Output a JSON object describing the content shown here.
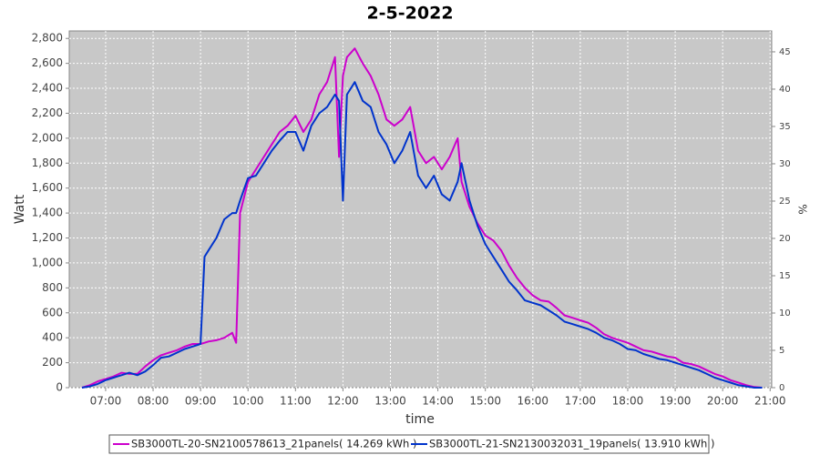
{
  "chart_data": {
    "type": "line",
    "title": "2-5-2022",
    "x_label": "time",
    "y_label": "Watt",
    "y2_label": "%",
    "grid": true,
    "legend": "bottom",
    "xlim": [
      "06:14",
      "21:02"
    ],
    "xticks": [
      "07:00",
      "08:00",
      "09:00",
      "10:00",
      "11:00",
      "12:00",
      "13:00",
      "14:00",
      "15:00",
      "16:00",
      "17:00",
      "18:00",
      "19:00",
      "20:00",
      "21:00"
    ],
    "ylim": [
      0,
      2860
    ],
    "yticks": [
      0,
      200,
      400,
      600,
      800,
      {
        "value": 1000,
        "label": "1,000"
      },
      {
        "value": 1200,
        "label": "1,200"
      },
      {
        "value": 1400,
        "label": "1,400"
      },
      {
        "value": 1600,
        "label": "1,600"
      },
      {
        "value": 1800,
        "label": "1,800"
      },
      {
        "value": 2000,
        "label": "2,000"
      },
      {
        "value": 2200,
        "label": "2,200"
      },
      {
        "value": 2400,
        "label": "2,400"
      },
      {
        "value": 2600,
        "label": "2,600"
      },
      {
        "value": 2800,
        "label": "2,800"
      }
    ],
    "y2lim": [
      0,
      47.8
    ],
    "y2ticks": [
      0,
      5,
      10,
      15,
      20,
      25,
      30,
      35,
      40,
      45
    ],
    "x": [
      "06:30",
      "06:40",
      "06:50",
      "07:00",
      "07:10",
      "07:20",
      "07:30",
      "07:40",
      "07:50",
      "08:00",
      "08:10",
      "08:20",
      "08:30",
      "08:40",
      "08:50",
      "09:00",
      "09:05",
      "09:10",
      "09:20",
      "09:30",
      "09:40",
      "09:45",
      "09:50",
      "10:00",
      "10:10",
      "10:20",
      "10:30",
      "10:40",
      "10:50",
      "11:00",
      "11:10",
      "11:20",
      "11:30",
      "11:40",
      "11:50",
      "11:55",
      "12:00",
      "12:05",
      "12:15",
      "12:25",
      "12:35",
      "12:45",
      "12:55",
      "13:05",
      "13:15",
      "13:25",
      "13:35",
      "13:45",
      "13:55",
      "14:05",
      "14:15",
      "14:25",
      "14:30",
      "14:40",
      "14:50",
      "15:00",
      "15:10",
      "15:20",
      "15:30",
      "15:40",
      "15:50",
      "16:00",
      "16:10",
      "16:20",
      "16:30",
      "16:40",
      "16:50",
      "17:00",
      "17:10",
      "17:20",
      "17:30",
      "17:40",
      "17:50",
      "18:00",
      "18:10",
      "18:20",
      "18:30",
      "18:40",
      "18:50",
      "19:00",
      "19:10",
      "19:20",
      "19:30",
      "19:40",
      "19:50",
      "20:00",
      "20:10",
      "20:20",
      "20:30",
      "20:40",
      "20:50"
    ],
    "series": [
      {
        "name": "SB3000TL-20-SN2100578613_21panels( 14.269 kWh )",
        "color": "#cc00cc",
        "values": [
          0,
          20,
          50,
          70,
          90,
          120,
          110,
          110,
          170,
          220,
          260,
          280,
          300,
          330,
          350,
          350,
          360,
          370,
          380,
          400,
          440,
          360,
          1400,
          1650,
          1750,
          1850,
          1950,
          2050,
          2100,
          2180,
          2050,
          2150,
          2350,
          2450,
          2650,
          1850,
          2500,
          2650,
          2720,
          2600,
          2500,
          2350,
          2150,
          2100,
          2150,
          2250,
          1900,
          1800,
          1850,
          1750,
          1850,
          2000,
          1650,
          1450,
          1320,
          1220,
          1180,
          1100,
          980,
          880,
          800,
          740,
          700,
          690,
          640,
          580,
          560,
          540,
          520,
          480,
          430,
          400,
          380,
          360,
          330,
          300,
          290,
          270,
          250,
          240,
          200,
          190,
          170,
          140,
          110,
          90,
          60,
          40,
          20,
          5,
          0
        ]
      },
      {
        "name": "SB3000TL-21-SN2130032031_19panels( 13.910 kWh )",
        "color": "#0033cc",
        "values": [
          0,
          10,
          30,
          60,
          80,
          100,
          120,
          100,
          130,
          180,
          240,
          250,
          280,
          310,
          330,
          350,
          1050,
          1100,
          1200,
          1350,
          1400,
          1400,
          1500,
          1680,
          1700,
          1800,
          1900,
          1980,
          2050,
          2050,
          1900,
          2100,
          2200,
          2250,
          2350,
          2300,
          1500,
          2350,
          2450,
          2300,
          2250,
          2050,
          1950,
          1800,
          1900,
          2050,
          1700,
          1600,
          1700,
          1550,
          1500,
          1650,
          1800,
          1500,
          1300,
          1150,
          1050,
          950,
          850,
          780,
          700,
          680,
          660,
          620,
          580,
          530,
          510,
          490,
          470,
          440,
          400,
          380,
          350,
          310,
          300,
          270,
          250,
          230,
          220,
          200,
          180,
          160,
          140,
          110,
          80,
          60,
          40,
          20,
          10,
          0,
          0
        ]
      }
    ]
  }
}
